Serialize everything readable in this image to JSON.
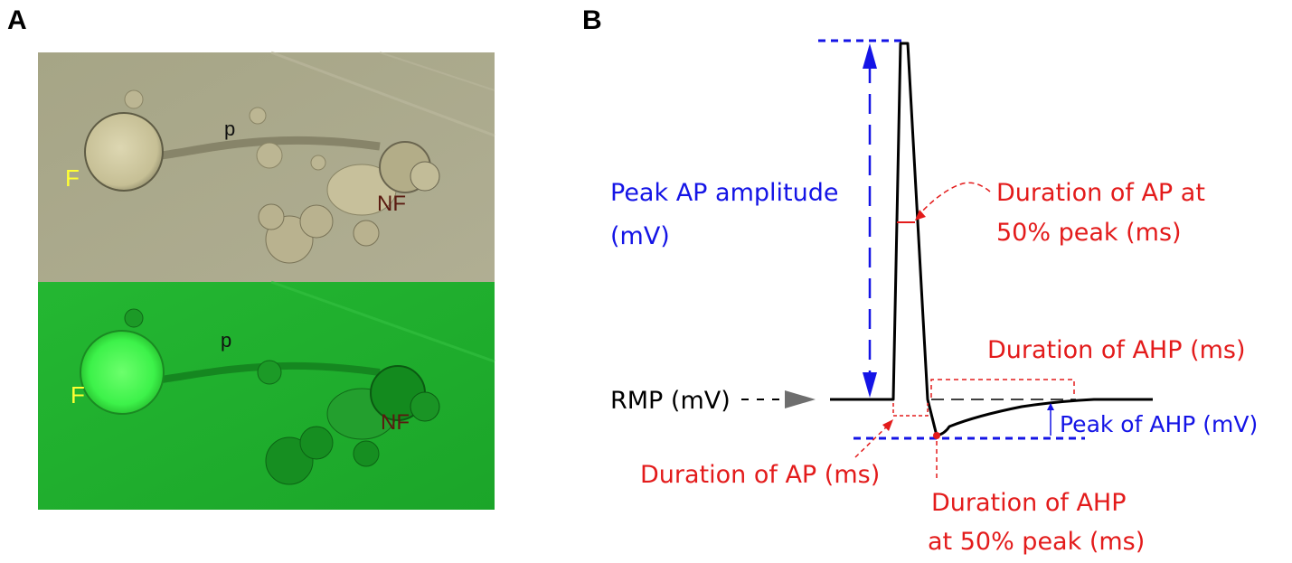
{
  "panel_a": {
    "letter": "A",
    "brightfield_labels": {
      "fluorescent_cell": "F",
      "process": "p",
      "non_fluorescent_cell": "NF"
    },
    "fluorescence_labels": {
      "fluorescent_cell": "F",
      "process": "p",
      "non_fluorescent_cell": "NF"
    },
    "colors": {
      "brightfield_bg": "#a9a88a",
      "fluorescence_bg": "#1fae2c",
      "label_f": "#ffff33",
      "label_nf": "#5a1a10",
      "label_p": "#111111"
    }
  },
  "panel_b": {
    "letter": "B",
    "labels": {
      "peak_ap_amplitude_1": "Peak AP amplitude",
      "peak_ap_amplitude_2": "(mV)",
      "duration_ap_50_1": "Duration of AP at",
      "duration_ap_50_2": "50% peak (ms)",
      "duration_ahp": "Duration of AHP (ms)",
      "rmp": "RMP (mV)",
      "peak_ahp": "Peak of AHP (mV)",
      "duration_ap": "Duration of AP (ms)",
      "duration_ahp_50_1": "Duration of AHP",
      "duration_ahp_50_2": "at 50% peak (ms)"
    },
    "colors": {
      "blue": "#1414e6",
      "red": "#e31b1b",
      "trace": "#000000",
      "rmp_arrow": "#6e6e6e"
    }
  }
}
